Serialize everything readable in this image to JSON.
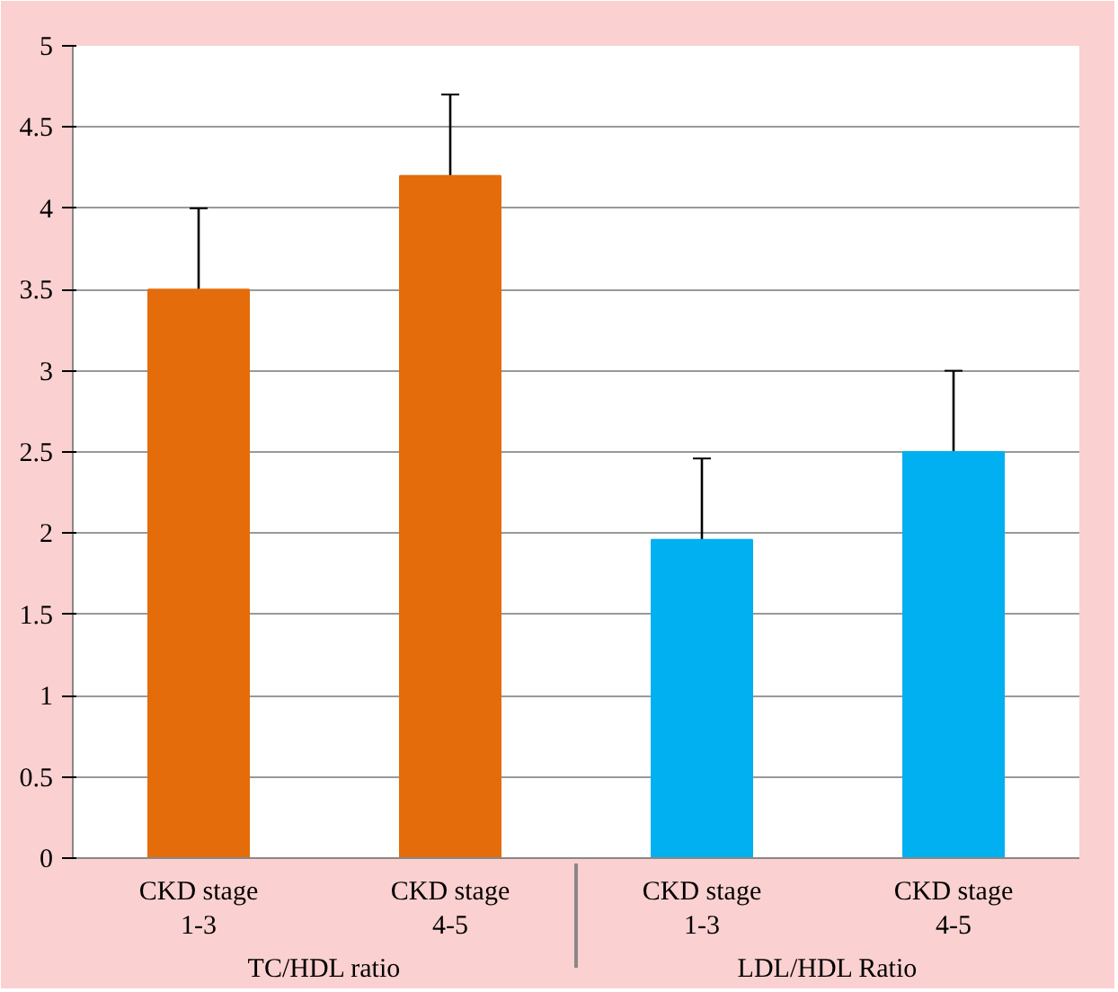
{
  "chart_data": {
    "type": "bar",
    "categories": [
      "CKD stage 1-3",
      "CKD stage 4-5",
      "CKD stage 1-3",
      "CKD stage 4-5"
    ],
    "values": [
      3.5,
      4.2,
      1.96,
      2.5
    ],
    "errors": [
      0.5,
      0.5,
      0.5,
      0.5
    ],
    "colors": [
      "#e46c0a",
      "#e46c0a",
      "#00b0f0",
      "#00b0f0"
    ],
    "annotations": [
      "TC/HDL ratio",
      "LDL/HDL Ratio"
    ],
    "ylim": [
      0,
      5
    ],
    "yticks": [
      0,
      0.5,
      1,
      1.5,
      2,
      2.5,
      3,
      3.5,
      4,
      4.5,
      5
    ],
    "grid": "y"
  }
}
